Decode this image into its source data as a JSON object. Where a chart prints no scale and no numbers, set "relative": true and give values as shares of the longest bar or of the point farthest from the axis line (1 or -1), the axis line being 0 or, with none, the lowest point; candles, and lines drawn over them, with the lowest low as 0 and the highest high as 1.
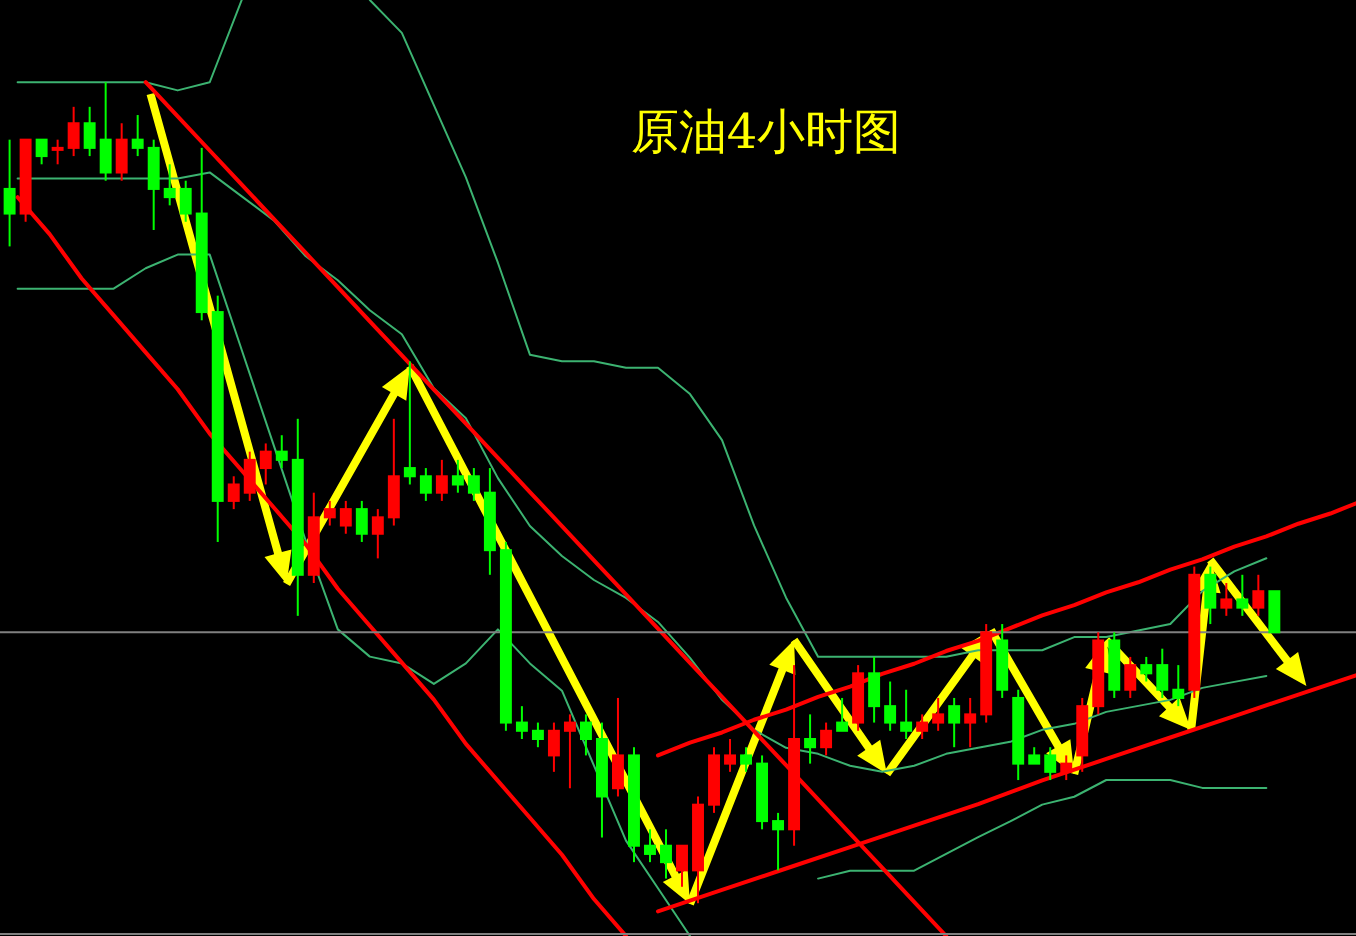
{
  "chart_data": [
    {
      "type": "candlestick",
      "title": "原油4小时图",
      "relative": true,
      "categories": [
        null,
        null,
        null,
        null,
        null,
        null,
        null,
        null,
        null,
        null,
        null,
        null,
        null,
        null,
        null,
        null,
        null,
        null,
        null,
        null,
        null,
        null,
        null,
        null,
        null,
        null,
        null,
        null,
        null,
        null,
        null,
        null,
        null,
        null,
        null,
        null,
        null,
        null,
        null,
        null,
        null,
        null,
        null,
        null,
        null,
        null,
        null,
        null,
        null,
        null,
        null,
        null,
        null,
        null,
        null,
        null,
        null,
        null,
        null,
        null,
        null,
        null,
        null,
        null,
        null,
        null,
        null,
        null,
        null,
        null,
        null,
        null,
        null,
        null,
        null,
        null,
        null,
        null,
        null,
        null
      ],
      "ohlc": [
        [
          0.87,
          0.93,
          0.8,
          0.84
        ],
        [
          0.84,
          0.93,
          0.83,
          0.93
        ],
        [
          0.93,
          0.93,
          0.9,
          0.91
        ],
        [
          0.92,
          0.93,
          0.9,
          0.92
        ],
        [
          0.92,
          0.97,
          0.91,
          0.95
        ],
        [
          0.95,
          0.97,
          0.91,
          0.92
        ],
        [
          0.93,
          1.0,
          0.88,
          0.89
        ],
        [
          0.89,
          0.95,
          0.88,
          0.93
        ],
        [
          0.93,
          0.96,
          0.91,
          0.92
        ],
        [
          0.92,
          0.93,
          0.82,
          0.87
        ],
        [
          0.87,
          0.9,
          0.85,
          0.86
        ],
        [
          0.87,
          0.88,
          0.83,
          0.84
        ],
        [
          0.84,
          0.92,
          0.71,
          0.72
        ],
        [
          0.72,
          0.74,
          0.44,
          0.49
        ],
        [
          0.49,
          0.52,
          0.48,
          0.51
        ],
        [
          0.5,
          0.55,
          0.49,
          0.54
        ],
        [
          0.53,
          0.56,
          0.51,
          0.55
        ],
        [
          0.55,
          0.57,
          0.53,
          0.54
        ],
        [
          0.54,
          0.59,
          0.35,
          0.4
        ],
        [
          0.4,
          0.5,
          0.39,
          0.47
        ],
        [
          0.47,
          0.49,
          0.46,
          0.48
        ],
        [
          0.46,
          0.49,
          0.45,
          0.48
        ],
        [
          0.48,
          0.49,
          0.44,
          0.45
        ],
        [
          0.45,
          0.48,
          0.42,
          0.47
        ],
        [
          0.47,
          0.59,
          0.46,
          0.52
        ],
        [
          0.53,
          0.66,
          0.51,
          0.52
        ],
        [
          0.52,
          0.53,
          0.49,
          0.5
        ],
        [
          0.5,
          0.54,
          0.49,
          0.52
        ],
        [
          0.52,
          0.54,
          0.5,
          0.51
        ],
        [
          0.52,
          0.53,
          0.49,
          0.5
        ],
        [
          0.5,
          0.53,
          0.4,
          0.43
        ],
        [
          0.43,
          0.44,
          0.21,
          0.22
        ],
        [
          0.22,
          0.24,
          0.2,
          0.21
        ],
        [
          0.21,
          0.22,
          0.19,
          0.2
        ],
        [
          0.18,
          0.22,
          0.16,
          0.21
        ],
        [
          0.21,
          0.23,
          0.14,
          0.22
        ],
        [
          0.22,
          0.23,
          0.18,
          0.2
        ],
        [
          0.2,
          0.22,
          0.08,
          0.13
        ],
        [
          0.14,
          0.25,
          0.13,
          0.18
        ],
        [
          0.18,
          0.19,
          0.05,
          0.07
        ],
        [
          0.07,
          0.09,
          0.05,
          0.06
        ],
        [
          0.07,
          0.09,
          0.03,
          0.05
        ],
        [
          0.04,
          0.07,
          0.02,
          0.07
        ],
        [
          0.04,
          0.13,
          0.0,
          0.12
        ],
        [
          0.12,
          0.19,
          0.11,
          0.18
        ],
        [
          0.17,
          0.2,
          0.16,
          0.18
        ],
        [
          0.18,
          0.19,
          0.16,
          0.17
        ],
        [
          0.17,
          0.18,
          0.09,
          0.1
        ],
        [
          0.1,
          0.11,
          0.04,
          0.09
        ],
        [
          0.09,
          0.29,
          0.07,
          0.2
        ],
        [
          0.2,
          0.23,
          0.17,
          0.19
        ],
        [
          0.19,
          0.22,
          0.18,
          0.21
        ],
        [
          0.22,
          0.25,
          0.21,
          0.21
        ],
        [
          0.22,
          0.29,
          0.21,
          0.28
        ],
        [
          0.28,
          0.3,
          0.22,
          0.24
        ],
        [
          0.24,
          0.27,
          0.21,
          0.22
        ],
        [
          0.22,
          0.26,
          0.2,
          0.21
        ],
        [
          0.21,
          0.23,
          0.2,
          0.22
        ],
        [
          0.22,
          0.25,
          0.21,
          0.23
        ],
        [
          0.24,
          0.25,
          0.19,
          0.22
        ],
        [
          0.22,
          0.25,
          0.19,
          0.23
        ],
        [
          0.23,
          0.34,
          0.22,
          0.33
        ],
        [
          0.32,
          0.34,
          0.25,
          0.26
        ],
        [
          0.25,
          0.26,
          0.15,
          0.17
        ],
        [
          0.18,
          0.19,
          0.17,
          0.17
        ],
        [
          0.18,
          0.19,
          0.15,
          0.16
        ],
        [
          0.16,
          0.18,
          0.15,
          0.17
        ],
        [
          0.18,
          0.25,
          0.16,
          0.24
        ],
        [
          0.24,
          0.33,
          0.23,
          0.32
        ],
        [
          0.32,
          0.33,
          0.25,
          0.26
        ],
        [
          0.26,
          0.3,
          0.25,
          0.29
        ],
        [
          0.29,
          0.3,
          0.27,
          0.28
        ],
        [
          0.29,
          0.31,
          0.25,
          0.26
        ],
        [
          0.26,
          0.29,
          0.24,
          0.25
        ],
        [
          0.26,
          0.41,
          0.25,
          0.4
        ],
        [
          0.4,
          0.41,
          0.34,
          0.36
        ],
        [
          0.36,
          0.39,
          0.35,
          0.37
        ],
        [
          0.37,
          0.4,
          0.35,
          0.36
        ],
        [
          0.36,
          0.4,
          0.35,
          0.38
        ],
        [
          0.38,
          0.38,
          0.33,
          0.33
        ]
      ],
      "ref_lines": [
        {
          "axis": "y",
          "value": 0.33,
          "color": "#808080"
        }
      ]
    },
    {
      "type": "line",
      "relative": true,
      "categories": [
        null,
        null,
        null,
        null,
        null,
        null,
        null,
        null
      ],
      "series": [
        {
          "color": "#3cb371",
          "values": [
            0.09,
            0.09,
            0.09,
            0.09,
            0.09,
            0.0,
            0.09,
            1.0
          ]
        }
      ]
    },
    {
      "type": "line",
      "relative": true,
      "categories": [
        null,
        null,
        null,
        null,
        null,
        null,
        null,
        null,
        null,
        null,
        null,
        null,
        null,
        null,
        null,
        null,
        null,
        null,
        null,
        null,
        null,
        null,
        null,
        null,
        null,
        null,
        null,
        null,
        null
      ],
      "series": [
        {
          "color": "#3cb371",
          "values": [
            1.0,
            0.95,
            0.84,
            0.73,
            0.6,
            0.46,
            0.45,
            0.45,
            0.44,
            0.44,
            0.4,
            0.33,
            0.2,
            0.09,
            0.0,
            0.0,
            0.0,
            0.0,
            0.0,
            0.01,
            0.01,
            0.01,
            0.03,
            0.03,
            0.04,
            0.05,
            0.1,
            0.13,
            0.15
          ]
        }
      ]
    },
    {
      "type": "line",
      "relative": true,
      "categories": [
        null,
        null,
        null,
        null,
        null,
        null,
        null,
        null,
        null,
        null,
        null,
        null,
        null,
        null,
        null,
        null,
        null,
        null,
        null,
        null,
        null,
        null,
        null,
        null,
        null,
        null,
        null,
        null,
        null,
        null,
        null,
        null,
        null,
        null,
        null,
        null,
        null,
        null,
        null,
        null
      ],
      "series": [
        {
          "color": "#3cb371",
          "values": [
            0.99,
            0.99,
            0.99,
            0.99,
            0.99,
            0.99,
            1.0,
            0.96,
            0.92,
            0.86,
            0.82,
            0.77,
            0.73,
            0.64,
            0.59,
            0.49,
            0.41,
            0.36,
            0.32,
            0.29,
            0.25,
            0.19,
            0.12,
            0.07,
            0.04,
            0.03,
            0.01,
            0.0,
            0.01,
            0.03,
            0.04,
            0.05,
            0.07,
            0.08,
            0.1,
            0.11,
            0.12,
            0.14,
            0.15,
            0.16
          ]
        }
      ]
    },
    {
      "type": "line",
      "relative": true,
      "categories": [
        null,
        null,
        null,
        null,
        null,
        null,
        null,
        null,
        null,
        null,
        null,
        null,
        null,
        null,
        null,
        null,
        null,
        null,
        null,
        null,
        null,
        null
      ],
      "series": [
        {
          "color": "#3cb371",
          "values": [
            0.95,
            0.95,
            0.95,
            0.95,
            0.98,
            1.0,
            1.0,
            0.86,
            0.72,
            0.58,
            0.45,
            0.41,
            0.4,
            0.37,
            0.4,
            0.45,
            0.4,
            0.36,
            0.25,
            0.14,
            0.07,
            0.0
          ]
        }
      ]
    },
    {
      "type": "line",
      "relative": true,
      "categories": [
        null,
        null,
        null,
        null,
        null,
        null,
        null,
        null,
        null,
        null,
        null,
        null,
        null,
        null,
        null
      ],
      "series": [
        {
          "color": "#3cb371",
          "values": [
            0.0,
            0.08,
            0.08,
            0.08,
            0.25,
            0.42,
            0.58,
            0.75,
            0.83,
            1.0,
            1.0,
            1.0,
            0.92,
            0.92,
            0.92
          ]
        }
      ]
    },
    {
      "type": "line",
      "relative": true,
      "categories": [
        null,
        null,
        null,
        null,
        null,
        null,
        null,
        null,
        null,
        null,
        null,
        null,
        null,
        null,
        null,
        null,
        null,
        null,
        null,
        null,
        null,
        null,
        null,
        null,
        null,
        null
      ],
      "series": [
        {
          "color": "#ff0000",
          "values": [
            1.0,
            0.96,
            0.92,
            0.88,
            0.84,
            0.8,
            0.76,
            0.72,
            0.68,
            0.64,
            0.6,
            0.56,
            0.52,
            0.48,
            0.44,
            0.4,
            0.36,
            0.32,
            0.28,
            0.24,
            0.2,
            0.16,
            0.12,
            0.08,
            0.04,
            0.0
          ]
        }
      ]
    },
    {
      "type": "line",
      "relative": true,
      "categories": [
        null,
        null,
        null,
        null,
        null,
        null,
        null,
        null,
        null,
        null,
        null,
        null,
        null,
        null,
        null,
        null,
        null,
        null,
        null,
        null
      ],
      "series": [
        {
          "color": "#ff0000",
          "values": [
            1.0,
            0.95,
            0.89,
            0.84,
            0.79,
            0.74,
            0.68,
            0.63,
            0.58,
            0.53,
            0.47,
            0.42,
            0.37,
            0.32,
            0.26,
            0.21,
            0.16,
            0.11,
            0.05,
            0.0
          ]
        }
      ]
    },
    {
      "type": "line",
      "relative": true,
      "categories": [
        null,
        null,
        null,
        null,
        null,
        null,
        null,
        null,
        null,
        null,
        null,
        null,
        null,
        null,
        null,
        null,
        null,
        null,
        null,
        null,
        null,
        null,
        null
      ],
      "series": [
        {
          "color": "#ff0000",
          "values": [
            0.0,
            0.05,
            0.09,
            0.14,
            0.18,
            0.23,
            0.27,
            0.32,
            0.36,
            0.41,
            0.45,
            0.5,
            0.55,
            0.59,
            0.64,
            0.68,
            0.73,
            0.77,
            0.82,
            0.86,
            0.91,
            0.95,
            1.0
          ]
        }
      ]
    },
    {
      "type": "line",
      "relative": true,
      "categories": [
        null,
        null,
        null,
        null,
        null,
        null,
        null,
        null,
        null,
        null,
        null,
        null
      ],
      "series": [
        {
          "color": "#ff0000",
          "values": [
            0.0,
            0.09,
            0.18,
            0.27,
            0.36,
            0.45,
            0.55,
            0.64,
            0.73,
            0.82,
            0.91,
            1.0
          ]
        }
      ]
    }
  ]
}
